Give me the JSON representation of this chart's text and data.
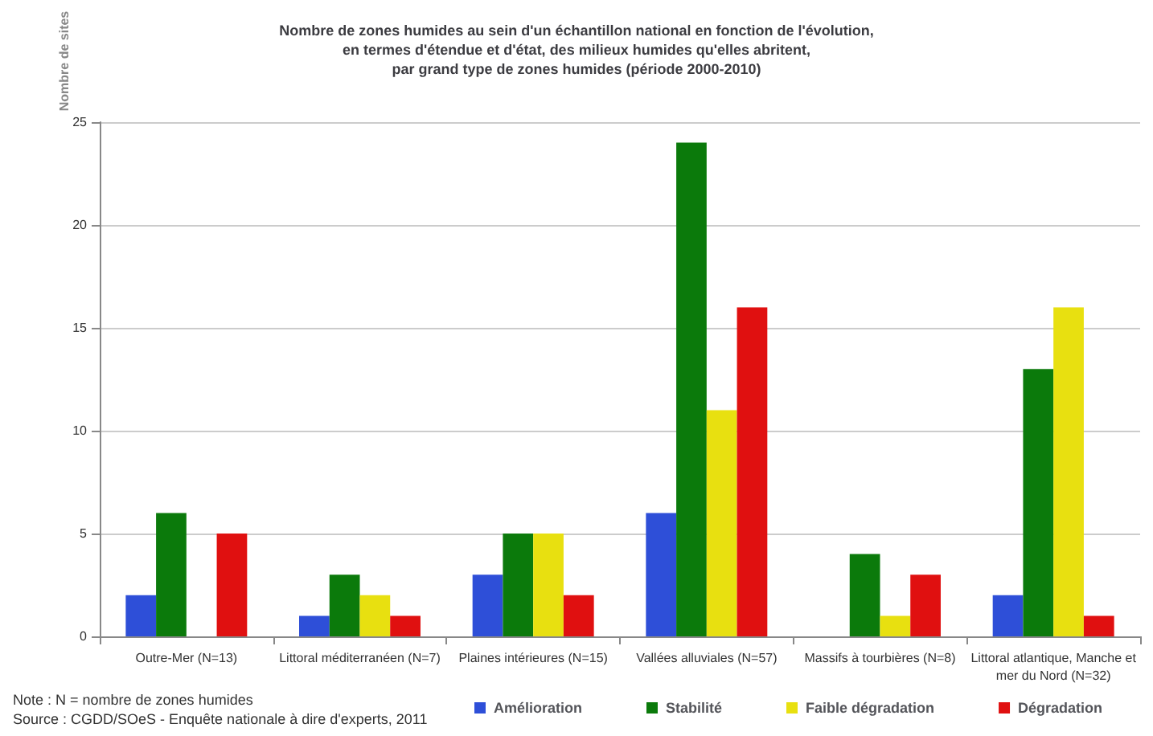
{
  "chart_data": {
    "type": "bar",
    "title": "Nombre de zones humides au sein d'un échantillon national en fonction de l'évolution,\nen termes d'étendue et d'état, des milieux humides qu'elles abritent,\npar grand type de zones humides (période 2000-2010)",
    "ylabel": "Nombre de sites",
    "categories": [
      "Outre-Mer (N=13)",
      "Littoral méditerranéen (N=7)",
      "Plaines intérieures (N=15)",
      "Vallées alluviales (N=57)",
      "Massifs à tourbières (N=8)",
      "Littoral atlantique, Manche et\nmer du Nord (N=32)"
    ],
    "series": [
      {
        "name": "Amélioration",
        "color": "#2e4fd8",
        "values": [
          2,
          1,
          3,
          6,
          0,
          2
        ]
      },
      {
        "name": "Stabilité",
        "color": "#0b7a0b",
        "values": [
          6,
          3,
          5,
          24,
          4,
          13
        ]
      },
      {
        "name": "Faible dégradation",
        "color": "#e8e010",
        "values": [
          0,
          2,
          5,
          11,
          1,
          16
        ]
      },
      {
        "name": "Dégradation",
        "color": "#e01010",
        "values": [
          5,
          1,
          2,
          16,
          3,
          1
        ]
      }
    ],
    "ylim": [
      0,
      25
    ],
    "yticks": [
      0,
      5,
      10,
      15,
      20,
      25
    ],
    "grid": "y",
    "legend": "bottom",
    "annotations": [
      "Note : N = nombre de zones humides",
      "Source : CGDD/SOeS - Enquête nationale à dire d'experts, 2011"
    ]
  }
}
